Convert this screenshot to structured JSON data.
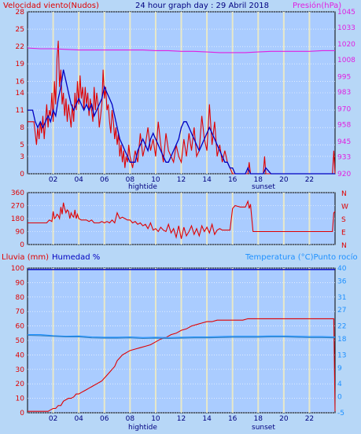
{
  "header": {
    "wind_label": "Velocidad viento(Nudos)",
    "title": "24 hour graph day : 29 Abril 2018",
    "pressure_label": "Presión(hPa)"
  },
  "bottom_header": {
    "rain_label": "Lluvia (mm)",
    "humidity_label": "Humedad %",
    "temp_label": "Temperatura (°C)Punto rocío"
  },
  "colors": {
    "panel_bg": "#aaccff",
    "page_bg": "#b7d7f7",
    "wind_gust": "#e00000",
    "wind_avg": "#0000c0",
    "pressure": "#e020e0",
    "direction": "#e00000",
    "rain": "#e00000",
    "humidity": "#0000c0",
    "temperature": "#1e90ff",
    "dewpoint": "#3080c0"
  },
  "x_ticks": [
    "02",
    "04",
    "06",
    "08",
    "10",
    "12",
    "14",
    "16",
    "18",
    "20",
    "22"
  ],
  "x_markers": {
    "hightide": "hightide",
    "sunset": "sunset"
  },
  "chart_data": [
    {
      "type": "line",
      "name": "wind",
      "xlim": [
        0,
        24
      ],
      "ylim": [
        0,
        28
      ],
      "y_ticks": [
        0,
        3,
        5,
        8,
        11,
        14,
        16,
        19,
        22,
        25,
        28
      ],
      "y2lim": [
        920,
        1045
      ],
      "y2_ticks": [
        920,
        933,
        945,
        958,
        970,
        983,
        995,
        1008,
        1020,
        1033,
        1045
      ],
      "series": [
        {
          "key": "gust",
          "x": [
            0,
            0.5,
            0.6,
            0.7,
            0.8,
            0.9,
            1.0,
            1.1,
            1.2,
            1.3,
            1.4,
            1.5,
            1.6,
            1.7,
            1.8,
            1.9,
            2.0,
            2.1,
            2.2,
            2.3,
            2.4,
            2.5,
            2.6,
            2.7,
            2.8,
            2.9,
            3.0,
            3.1,
            3.2,
            3.3,
            3.4,
            3.5,
            3.6,
            3.7,
            3.8,
            3.9,
            4.0,
            4.1,
            4.2,
            4.3,
            4.4,
            4.5,
            4.6,
            4.7,
            4.8,
            4.9,
            5.0,
            5.1,
            5.2,
            5.3,
            5.4,
            5.5,
            5.6,
            5.7,
            5.8,
            5.9,
            6.0,
            6.1,
            6.2,
            6.3,
            6.4,
            6.5,
            6.6,
            6.7,
            6.8,
            6.9,
            7.0,
            7.1,
            7.2,
            7.3,
            7.4,
            7.5,
            7.6,
            7.7,
            7.8,
            7.9,
            8.0,
            8.2,
            8.4,
            8.6,
            8.8,
            9.0,
            9.2,
            9.4,
            9.6,
            9.8,
            10.0,
            10.2,
            10.4,
            10.6,
            10.8,
            11.0,
            11.2,
            11.4,
            11.6,
            11.8,
            12.0,
            12.2,
            12.4,
            12.6,
            12.8,
            13.0,
            13.2,
            13.4,
            13.6,
            13.8,
            14.0,
            14.2,
            14.4,
            14.6,
            14.8,
            15.0,
            15.2,
            15.4,
            15.6,
            15.8,
            16.0,
            16.2,
            16.4,
            16.6,
            17.2,
            17.3,
            17.4,
            18.4,
            18.5,
            18.6,
            19.0,
            23.8,
            23.9,
            24.0
          ],
          "values": [
            9,
            9,
            7,
            5,
            8,
            6,
            9,
            7,
            10,
            6,
            9,
            12,
            8,
            11,
            10,
            14,
            9,
            16,
            12,
            20,
            23,
            15,
            18,
            12,
            14,
            10,
            13,
            9,
            12,
            10,
            8,
            12,
            9,
            14,
            11,
            16,
            12,
            17,
            13,
            15,
            11,
            15,
            12,
            14,
            10,
            13,
            11,
            9,
            15,
            11,
            14,
            12,
            8,
            10,
            12,
            18,
            13,
            15,
            11,
            12,
            9,
            7,
            11,
            9,
            6,
            8,
            5,
            7,
            3,
            5,
            2,
            4,
            1,
            3,
            2,
            5,
            3,
            1,
            4,
            2,
            7,
            3,
            5,
            8,
            4,
            6,
            3,
            9,
            5,
            2,
            7,
            4,
            3,
            2,
            5,
            3,
            2,
            6,
            3,
            7,
            4,
            8,
            3,
            4,
            10,
            6,
            4,
            12,
            5,
            9,
            3,
            5,
            2,
            4,
            2,
            1,
            0,
            0,
            0,
            0,
            0,
            2,
            0,
            0,
            3,
            0,
            0,
            0,
            4,
            0
          ]
        },
        {
          "key": "average",
          "x": [
            0,
            0.4,
            0.6,
            0.8,
            1.0,
            1.2,
            1.4,
            1.6,
            1.8,
            2.0,
            2.2,
            2.4,
            2.6,
            2.8,
            3.0,
            3.2,
            3.4,
            3.6,
            3.8,
            4.0,
            4.2,
            4.4,
            4.6,
            4.8,
            5.0,
            5.2,
            5.4,
            5.6,
            5.8,
            6.0,
            6.2,
            6.4,
            6.6,
            6.8,
            7.0,
            7.2,
            7.4,
            7.6,
            7.8,
            8.0,
            8.2,
            8.4,
            8.6,
            8.8,
            9.0,
            9.2,
            9.4,
            9.6,
            9.8,
            10.0,
            10.2,
            10.4,
            10.6,
            10.8,
            11.0,
            11.2,
            11.4,
            11.6,
            11.8,
            12.0,
            12.2,
            12.4,
            12.6,
            12.8,
            13.0,
            13.2,
            13.4,
            13.6,
            13.8,
            14.0,
            14.2,
            14.4,
            14.6,
            14.8,
            15.0,
            15.2,
            15.4,
            15.6,
            15.8,
            16.0,
            16.2,
            16.4,
            16.8,
            17.0,
            17.2,
            17.4,
            18.0,
            18.2,
            18.4,
            18.6,
            19.0,
            24.0
          ],
          "values": [
            11,
            11,
            9,
            8,
            9,
            8,
            9,
            10,
            9,
            11,
            10,
            13,
            15,
            18,
            16,
            14,
            12,
            11,
            12,
            13,
            12,
            11,
            12,
            11,
            12,
            10,
            11,
            12,
            13,
            15,
            14,
            13,
            12,
            10,
            8,
            6,
            5,
            4,
            3,
            2,
            2,
            2,
            4,
            5,
            6,
            5,
            4,
            6,
            7,
            6,
            5,
            4,
            3,
            2,
            2,
            3,
            4,
            5,
            6,
            8,
            9,
            9,
            8,
            7,
            6,
            5,
            4,
            5,
            6,
            7,
            8,
            7,
            6,
            5,
            4,
            3,
            2,
            2,
            1,
            1,
            0,
            0,
            0,
            0,
            1,
            0,
            0,
            0,
            0,
            1,
            0,
            0
          ]
        },
        {
          "key": "pressure",
          "axis": "y2",
          "x": [
            0,
            1,
            2,
            3,
            4,
            5,
            6,
            7,
            8,
            9,
            10,
            11,
            12,
            13,
            14,
            15,
            16,
            17,
            18,
            19,
            20,
            21,
            22,
            23,
            24
          ],
          "values": [
            1017,
            1016.5,
            1016.5,
            1016,
            1015.5,
            1015.5,
            1015.5,
            1015.5,
            1015.5,
            1015.5,
            1015,
            1015,
            1014.5,
            1014.5,
            1014,
            1013.5,
            1013.5,
            1013.5,
            1014,
            1014.5,
            1014.5,
            1014.5,
            1014.5,
            1015,
            1015
          ]
        }
      ]
    },
    {
      "type": "line",
      "name": "direction",
      "xlim": [
        0,
        24
      ],
      "ylim": [
        0,
        360
      ],
      "y_ticks": [
        0,
        90,
        180,
        270,
        360
      ],
      "y2_labels": [
        "N",
        "W",
        "S",
        "E",
        "N"
      ],
      "series": [
        {
          "key": "direction",
          "x": [
            0,
            1.5,
            1.7,
            1.9,
            2.0,
            2.1,
            2.2,
            2.3,
            2.4,
            2.5,
            2.6,
            2.7,
            2.8,
            2.9,
            3.0,
            3.1,
            3.2,
            3.3,
            3.4,
            3.5,
            3.6,
            3.7,
            3.8,
            3.9,
            4.0,
            4.2,
            4.4,
            4.6,
            4.8,
            5.0,
            5.2,
            5.4,
            5.6,
            5.8,
            6.0,
            6.2,
            6.4,
            6.6,
            6.8,
            7.0,
            7.2,
            7.4,
            7.6,
            7.8,
            8.0,
            8.2,
            8.4,
            8.6,
            8.8,
            9.0,
            9.2,
            9.4,
            9.6,
            9.8,
            10.0,
            10.2,
            10.4,
            10.6,
            10.8,
            11.0,
            11.2,
            11.4,
            11.6,
            11.8,
            12.0,
            12.2,
            12.4,
            12.6,
            12.8,
            13.0,
            13.2,
            13.4,
            13.6,
            13.8,
            14.0,
            14.2,
            14.4,
            14.6,
            14.8,
            15.0,
            15.2,
            15.4,
            15.6,
            15.8,
            16.0,
            16.2,
            16.6,
            17.0,
            17.2,
            17.3,
            17.4,
            17.6,
            17.8,
            23.8,
            23.9,
            24.0
          ],
          "values": [
            150,
            150,
            170,
            160,
            230,
            180,
            190,
            210,
            200,
            180,
            260,
            210,
            290,
            250,
            220,
            240,
            230,
            180,
            220,
            200,
            190,
            240,
            180,
            210,
            180,
            170,
            170,
            170,
            160,
            170,
            150,
            150,
            150,
            160,
            150,
            160,
            150,
            170,
            150,
            220,
            180,
            190,
            180,
            170,
            170,
            150,
            160,
            140,
            150,
            130,
            140,
            110,
            150,
            100,
            110,
            90,
            120,
            100,
            90,
            140,
            80,
            110,
            50,
            130,
            40,
            120,
            60,
            90,
            130,
            70,
            110,
            60,
            130,
            90,
            120,
            80,
            140,
            70,
            100,
            110,
            100,
            100,
            100,
            100,
            250,
            270,
            260,
            260,
            300,
            250,
            280,
            90,
            90,
            90,
            220,
            230
          ]
        }
      ]
    },
    {
      "type": "line",
      "name": "rain_humidity_temperature",
      "xlim": [
        0,
        24
      ],
      "ylim": [
        0,
        100
      ],
      "y_ticks": [
        0,
        10,
        20,
        30,
        40,
        50,
        60,
        70,
        80,
        90,
        100
      ],
      "y2lim": [
        -5,
        40
      ],
      "y2_ticks": [
        -5,
        0,
        4,
        9,
        13,
        18,
        22,
        27,
        31,
        36,
        40
      ],
      "series": [
        {
          "key": "rain",
          "x": [
            0,
            1.6,
            1.8,
            2.0,
            2.2,
            2.4,
            2.6,
            2.8,
            3.0,
            3.2,
            3.4,
            3.6,
            3.8,
            4.0,
            4.2,
            4.4,
            4.6,
            4.8,
            5.0,
            5.2,
            5.4,
            5.6,
            5.8,
            6.0,
            6.2,
            6.4,
            6.6,
            6.8,
            7.0,
            7.2,
            7.4,
            7.6,
            7.8,
            8.0,
            8.4,
            8.8,
            9.2,
            9.6,
            10.0,
            10.4,
            10.8,
            11.2,
            11.6,
            12.0,
            12.4,
            12.8,
            13.2,
            13.6,
            14.0,
            14.4,
            14.8,
            15.2,
            15.6,
            16.0,
            16.4,
            16.8,
            17.2,
            17.6,
            18.0,
            23.9,
            24.0
          ],
          "values": [
            1,
            1,
            2,
            3,
            3,
            5,
            5,
            8,
            9,
            10,
            10,
            11,
            13,
            13,
            14,
            15,
            16,
            17,
            18,
            19,
            20,
            21,
            22,
            24,
            26,
            28,
            30,
            32,
            36,
            38,
            40,
            41,
            42,
            43,
            44,
            45,
            46,
            47,
            49,
            51,
            52,
            54,
            55,
            57,
            58,
            60,
            61,
            62,
            63,
            63,
            64,
            64,
            64,
            64,
            64,
            64,
            65,
            65,
            65,
            65,
            1
          ]
        },
        {
          "key": "humidity",
          "x": [
            0,
            24
          ],
          "values": [
            99,
            99
          ]
        },
        {
          "key": "temperature",
          "axis": "y2",
          "x": [
            0,
            1,
            2,
            3,
            4,
            5,
            6,
            7,
            8,
            9,
            10,
            11,
            12,
            13,
            14,
            15,
            16,
            17,
            18,
            19,
            20,
            21,
            22,
            23,
            24
          ],
          "values": [
            19.3,
            19.3,
            19.0,
            18.8,
            18.9,
            18.6,
            18.5,
            18.5,
            18.6,
            18.4,
            18.5,
            18.4,
            18.5,
            18.6,
            18.6,
            18.7,
            18.8,
            18.8,
            18.8,
            18.9,
            18.9,
            18.8,
            18.7,
            18.7,
            18.6
          ]
        },
        {
          "key": "dewpoint",
          "axis": "y2",
          "x": [
            0,
            1,
            2,
            3,
            4,
            5,
            6,
            7,
            8,
            9,
            10,
            11,
            12,
            13,
            14,
            15,
            16,
            17,
            18,
            19,
            20,
            21,
            22,
            23,
            24
          ],
          "values": [
            19.1,
            19.0,
            18.8,
            18.6,
            18.6,
            18.3,
            18.2,
            18.2,
            18.3,
            18.1,
            18.2,
            18.1,
            18.2,
            18.3,
            18.3,
            18.4,
            18.5,
            18.5,
            18.5,
            18.6,
            18.6,
            18.5,
            18.4,
            18.4,
            18.3
          ]
        }
      ]
    }
  ]
}
